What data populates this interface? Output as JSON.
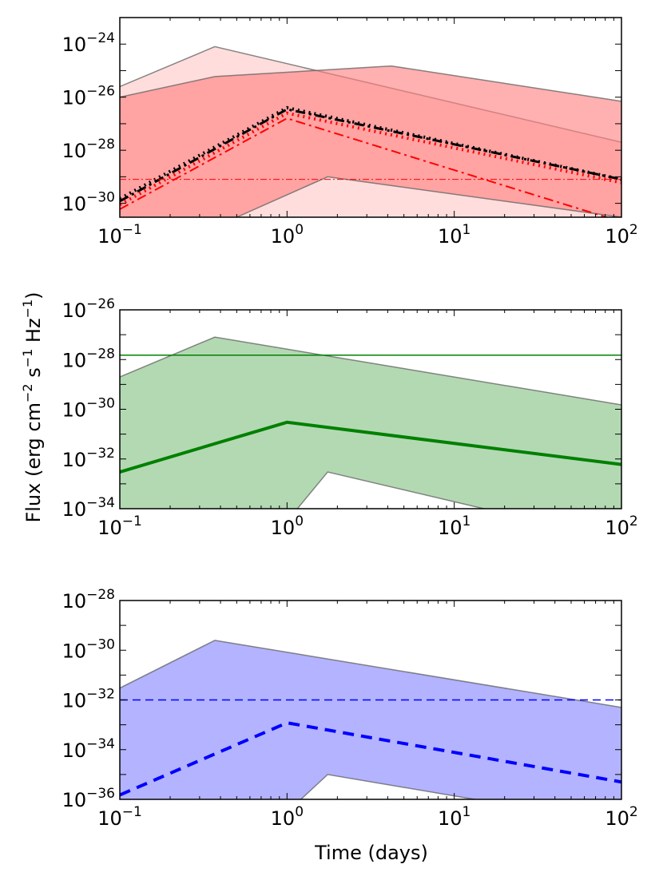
{
  "figure": {
    "ylabel": "Flux (erg cm",
    "ylabel_sup1": "−2",
    "ylabel_mid": " s",
    "ylabel_sup2": "−1",
    "ylabel_mid2": " Hz",
    "ylabel_sup3": "−1",
    "ylabel_end": ")",
    "xlabel": "Time (days)"
  },
  "chart_data": [
    {
      "type": "area",
      "panel": "top",
      "xscale": "log",
      "yscale": "log",
      "xlim": [
        0.1,
        100
      ],
      "ylim": [
        3e-31,
        1e-23
      ],
      "x_ticks": [
        {
          "base": "10",
          "exp": "-1"
        },
        {
          "base": "10",
          "exp": "0"
        },
        {
          "base": "10",
          "exp": "1"
        },
        {
          "base": "10",
          "exp": "2"
        }
      ],
      "y_ticks": [
        {
          "base": "10",
          "exp": "-30"
        },
        {
          "base": "10",
          "exp": "-28"
        },
        {
          "base": "10",
          "exp": "-26"
        },
        {
          "base": "10",
          "exp": "-24"
        }
      ],
      "bands": [
        {
          "name": "light band",
          "color": "#ffb3b3",
          "opacity": 0.45,
          "upper": [
            [
              0.1,
              2.5e-26
            ],
            [
              0.37,
              8e-25
            ],
            [
              100,
              2e-28
            ]
          ],
          "lower": [
            [
              0.1,
              3e-32
            ],
            [
              100,
              1e-33
            ]
          ]
        },
        {
          "name": "main band",
          "color": "#ff8080",
          "opacity": 0.62,
          "upper": [
            [
              0.1,
              1e-26
            ],
            [
              0.37,
              6e-26
            ],
            [
              4.2,
              1.5e-25
            ],
            [
              100,
              7e-27
            ]
          ],
          "lower": [
            [
              0.1,
              1e-32
            ],
            [
              0.5,
              3e-31
            ],
            [
              1.75,
              1e-29
            ],
            [
              100,
              3e-31
            ]
          ]
        }
      ],
      "series": [
        {
          "name": "black dotted",
          "color": "#000000",
          "style": "dotted",
          "width": 4,
          "x": [
            0.1,
            1.0,
            100
          ],
          "y": [
            1.5e-30,
            4e-27,
            8e-30
          ]
        },
        {
          "name": "black dash-dot",
          "color": "#000000",
          "style": "dashdot",
          "width": 3,
          "x": [
            0.1,
            1.0,
            100
          ],
          "y": [
            1.2e-30,
            3.5e-27,
            8e-30
          ]
        },
        {
          "name": "red dotted",
          "color": "#ff0000",
          "style": "dotted",
          "width": 4,
          "x": [
            0.1,
            1.0,
            100
          ],
          "y": [
            9e-31,
            2.5e-27,
            6e-30
          ]
        },
        {
          "name": "red dash-dot",
          "color": "#ff0000",
          "style": "dashdot",
          "width": 2,
          "x": [
            0.1,
            1.0,
            100
          ],
          "y": [
            6e-31,
            1.6e-27,
            2e-31
          ]
        },
        {
          "name": "red horizontal dash-dot",
          "color": "#ff0000",
          "style": "dashdot-thin",
          "width": 1,
          "x": [
            0.1,
            100
          ],
          "y": [
            8e-30,
            8e-30
          ]
        }
      ]
    },
    {
      "type": "area",
      "panel": "middle",
      "xscale": "log",
      "yscale": "log",
      "xlim": [
        0.1,
        100
      ],
      "ylim": [
        1e-34,
        1e-26
      ],
      "x_ticks": [
        {
          "base": "10",
          "exp": "-1"
        },
        {
          "base": "10",
          "exp": "0"
        },
        {
          "base": "10",
          "exp": "1"
        },
        {
          "base": "10",
          "exp": "2"
        }
      ],
      "y_ticks": [
        {
          "base": "10",
          "exp": "-34"
        },
        {
          "base": "10",
          "exp": "-32"
        },
        {
          "base": "10",
          "exp": "-30"
        },
        {
          "base": "10",
          "exp": "-28"
        },
        {
          "base": "10",
          "exp": "-26"
        }
      ],
      "bands": [
        {
          "name": "green band",
          "color": "#80c080",
          "opacity": 0.6,
          "upper": [
            [
              0.1,
              2e-29
            ],
            [
              0.37,
              8e-28
            ],
            [
              100,
              1.5e-30
            ]
          ],
          "lower": [
            [
              0.1,
              1e-36
            ],
            [
              0.75,
              3e-36
            ],
            [
              1.75,
              3e-33
            ],
            [
              100,
              5e-36
            ]
          ]
        }
      ],
      "series": [
        {
          "name": "green solid thick",
          "color": "#008000",
          "style": "solid",
          "width": 4,
          "x": [
            0.1,
            1.0,
            100
          ],
          "y": [
            3e-33,
            3e-31,
            6e-33
          ]
        },
        {
          "name": "green horizontal",
          "color": "#008000",
          "style": "solid",
          "width": 1.5,
          "x": [
            0.1,
            100
          ],
          "y": [
            1.5e-28,
            1.5e-28
          ]
        }
      ]
    },
    {
      "type": "area",
      "panel": "bottom",
      "xscale": "log",
      "yscale": "log",
      "xlim": [
        0.1,
        100
      ],
      "ylim": [
        1e-36,
        1e-28
      ],
      "x_ticks": [
        {
          "base": "10",
          "exp": "-1"
        },
        {
          "base": "10",
          "exp": "0"
        },
        {
          "base": "10",
          "exp": "1"
        },
        {
          "base": "10",
          "exp": "2"
        }
      ],
      "y_ticks": [
        {
          "base": "10",
          "exp": "-36"
        },
        {
          "base": "10",
          "exp": "-34"
        },
        {
          "base": "10",
          "exp": "-32"
        },
        {
          "base": "10",
          "exp": "-30"
        },
        {
          "base": "10",
          "exp": "-28"
        }
      ],
      "bands": [
        {
          "name": "blue band",
          "color": "#8080ff",
          "opacity": 0.6,
          "upper": [
            [
              0.1,
              3e-32
            ],
            [
              0.37,
              2.5e-30
            ],
            [
              100,
              5e-33
            ]
          ],
          "lower": [
            [
              0.1,
              1e-38
            ],
            [
              0.75,
              5e-38
            ],
            [
              1.75,
              1e-35
            ],
            [
              100,
              1e-37
            ]
          ]
        }
      ],
      "series": [
        {
          "name": "blue dashed thick",
          "color": "#0000ff",
          "style": "dashed",
          "width": 4,
          "x": [
            0.1,
            1.0,
            100
          ],
          "y": [
            1.5e-36,
            1.2e-33,
            5e-36
          ]
        },
        {
          "name": "blue horizontal dashed",
          "color": "#0000ff",
          "style": "dashed-thin",
          "width": 1.5,
          "x": [
            0.1,
            100
          ],
          "y": [
            1e-32,
            1e-32
          ]
        }
      ]
    }
  ]
}
